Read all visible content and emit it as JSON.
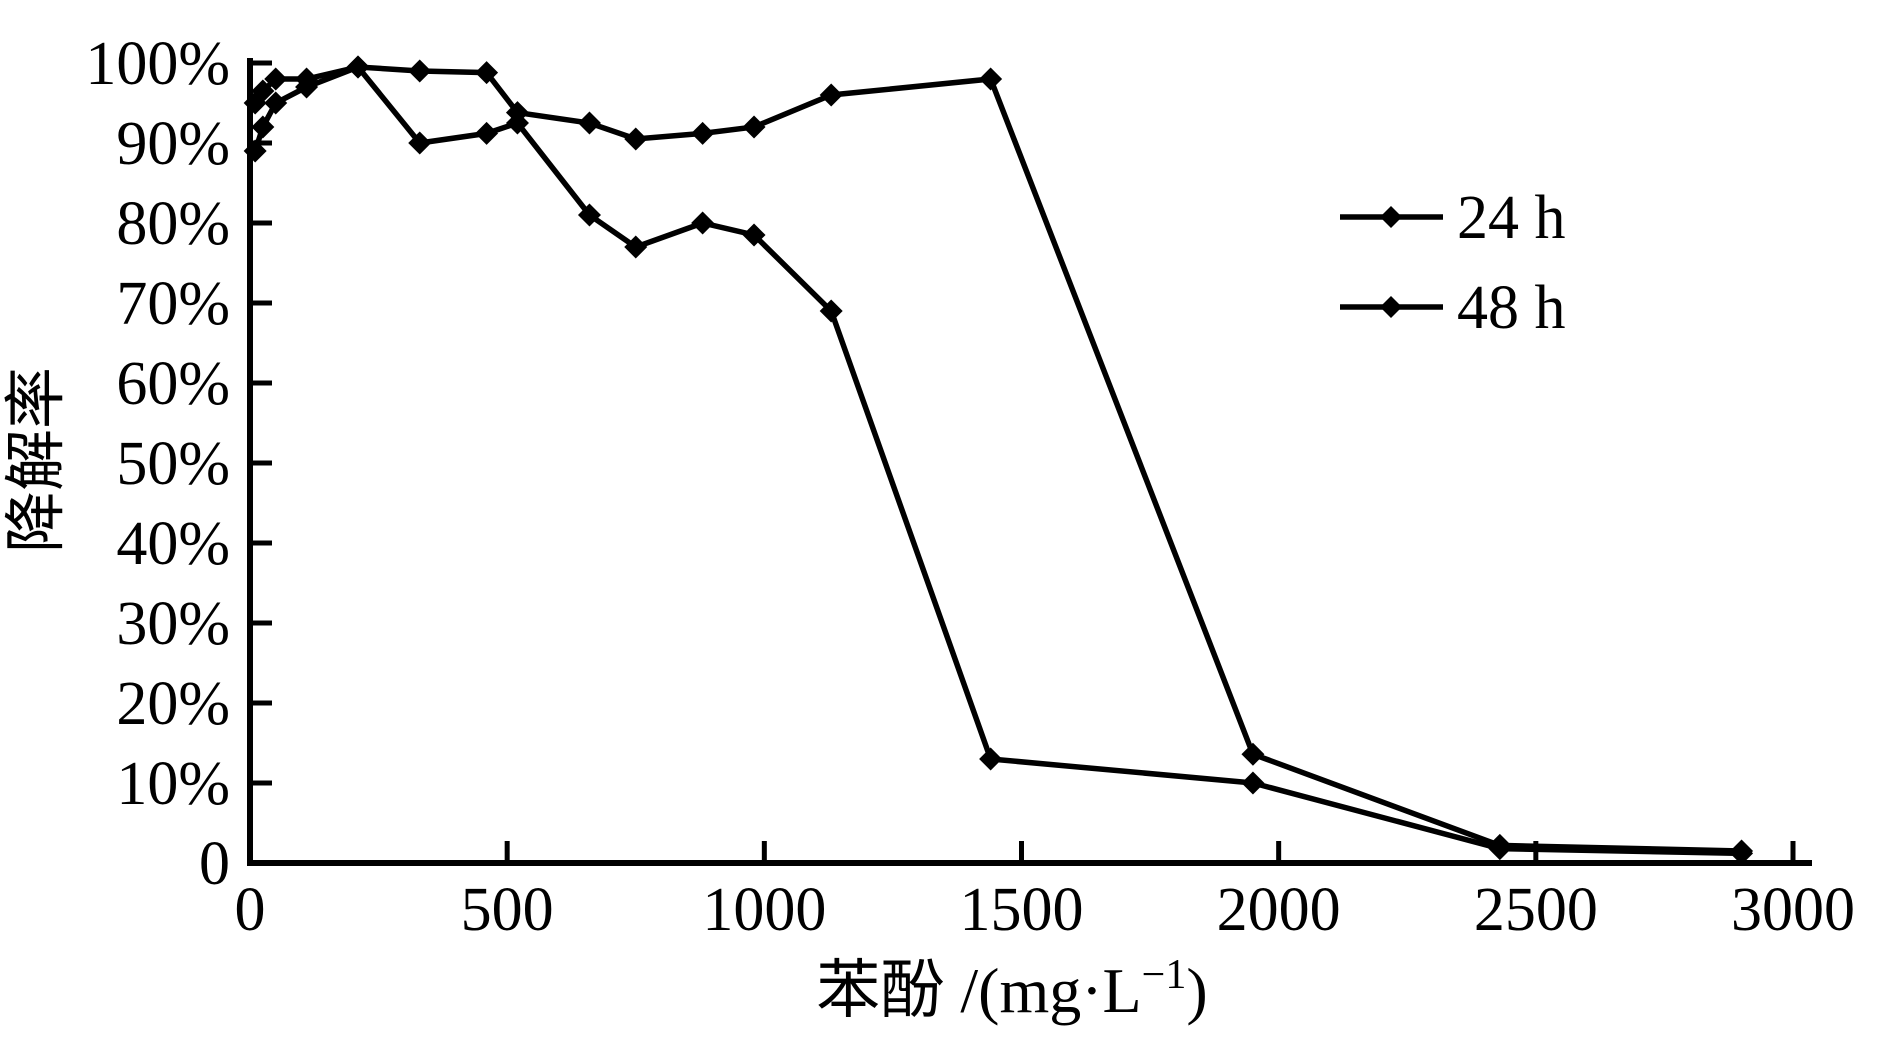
{
  "figure": {
    "background": "#ffffff",
    "ink_color": "#000000"
  },
  "chart_data": {
    "type": "line",
    "title": "",
    "xlabel": "苯酚 /(mg·L⁻¹)",
    "xlabel_parts": {
      "pre": "苯酚 /(mg·L",
      "sup": "−1",
      "post": ")"
    },
    "ylabel": "降解率",
    "xlim": [
      0,
      3000
    ],
    "ylim": [
      0,
      100
    ],
    "grid": false,
    "x_ticks": [
      {
        "value": 0,
        "label": "0"
      },
      {
        "value": 500,
        "label": "500"
      },
      {
        "value": 1000,
        "label": "1000"
      },
      {
        "value": 1500,
        "label": "1500"
      },
      {
        "value": 2000,
        "label": "2000"
      },
      {
        "value": 2500,
        "label": "2500"
      },
      {
        "value": 3000,
        "label": "3000"
      }
    ],
    "y_ticks": [
      {
        "value": 0,
        "label": "0"
      },
      {
        "value": 10,
        "label": "10%"
      },
      {
        "value": 20,
        "label": "20%"
      },
      {
        "value": 30,
        "label": "30%"
      },
      {
        "value": 40,
        "label": "40%"
      },
      {
        "value": 50,
        "label": "50%"
      },
      {
        "value": 60,
        "label": "60%"
      },
      {
        "value": 70,
        "label": "70%"
      },
      {
        "value": 80,
        "label": "80%"
      },
      {
        "value": 90,
        "label": "90%"
      },
      {
        "value": 100,
        "label": "100%"
      }
    ],
    "legend": {
      "position": "upper-right-inside",
      "marker": "filled-diamond"
    },
    "series": [
      {
        "name": "24 h",
        "color": "#000000",
        "marker": "filled-diamond",
        "points": [
          [
            10,
            89
          ],
          [
            25,
            92
          ],
          [
            50,
            95
          ],
          [
            110,
            97
          ],
          [
            210,
            99.5
          ],
          [
            330,
            90
          ],
          [
            460,
            91.2
          ],
          [
            520,
            92.5
          ],
          [
            660,
            81
          ],
          [
            750,
            77
          ],
          [
            880,
            80
          ],
          [
            980,
            78.5
          ],
          [
            1130,
            69
          ],
          [
            1440,
            13
          ],
          [
            1950,
            10
          ],
          [
            2430,
            1.8
          ],
          [
            2900,
            1.2
          ]
        ]
      },
      {
        "name": "48 h",
        "color": "#000000",
        "marker": "filled-diamond",
        "points": [
          [
            10,
            95
          ],
          [
            25,
            96.5
          ],
          [
            50,
            98
          ],
          [
            110,
            98
          ],
          [
            210,
            99.5
          ],
          [
            330,
            99
          ],
          [
            460,
            98.8
          ],
          [
            520,
            93.8
          ],
          [
            660,
            92.5
          ],
          [
            750,
            90.5
          ],
          [
            880,
            91.2
          ],
          [
            980,
            92
          ],
          [
            1130,
            96
          ],
          [
            1440,
            98
          ],
          [
            1950,
            13.6
          ],
          [
            2430,
            2.2
          ],
          [
            2900,
            1.5
          ]
        ]
      }
    ]
  }
}
